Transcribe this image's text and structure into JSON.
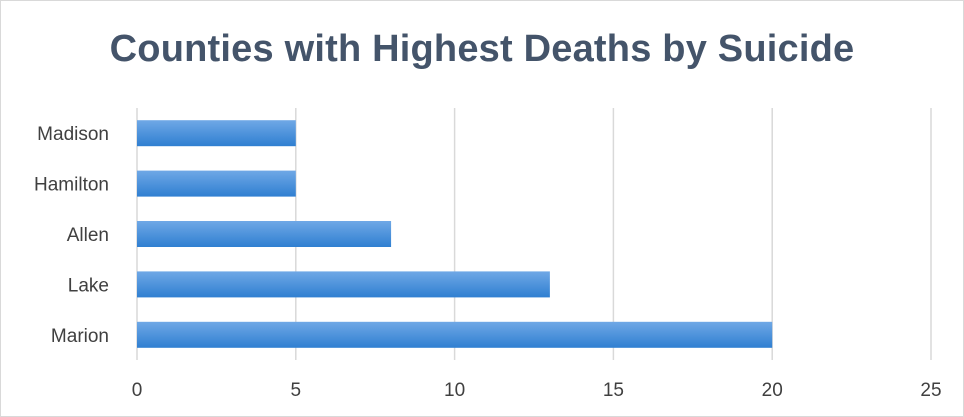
{
  "chart_data": {
    "type": "bar",
    "orientation": "horizontal",
    "title": "Counties with Highest Deaths by Suicide",
    "xlabel": "",
    "ylabel": "",
    "categories": [
      "Madison",
      "Hamilton",
      "Allen",
      "Lake",
      "Marion"
    ],
    "values": [
      5,
      5,
      8,
      13,
      20
    ],
    "xlim": [
      0,
      25
    ],
    "x_ticks": [
      "0",
      "5",
      "10",
      "15",
      "20",
      "25"
    ],
    "grid": "vertical",
    "legend": "none",
    "colors": {
      "bar_top": "#6fa8e6",
      "bar_bottom": "#2f7fd1",
      "gridline": "#d9d9d9",
      "title": "#44546a",
      "text": "#404040"
    }
  }
}
